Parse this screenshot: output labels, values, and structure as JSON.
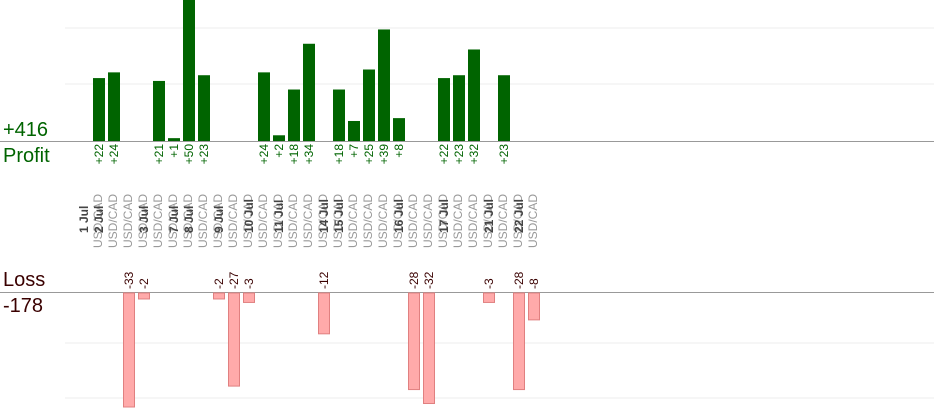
{
  "summary": {
    "profit_value": "+416",
    "profit_label": "Profit",
    "loss_label": "Loss",
    "loss_value": "-178"
  },
  "colors": {
    "profit_bar": "#006400",
    "loss_bar": "#ffaaaa",
    "loss_bar_border": "#e08080",
    "axis_line": "#999999",
    "grid": "#eeeeee",
    "date_text": "#444444",
    "pair_text": "#999999"
  },
  "chart_data": {
    "type": "bar",
    "title": "",
    "profit_axis_max": 50,
    "loss_axis_max": 33,
    "categories": [
      {
        "date": "1 Jul",
        "pair": "USD/CAD",
        "profit": 22,
        "profit_label": "+22"
      },
      {
        "date": "2 Jul",
        "pair": "USD/CAD",
        "profit": 24,
        "profit_label": "+24"
      },
      {
        "date": "",
        "pair": "USD/CAD",
        "loss": -33,
        "loss_label": "-33"
      },
      {
        "date": "",
        "pair": "USD/CAD",
        "loss": -2,
        "loss_label": "-2"
      },
      {
        "date": "3 Jul",
        "pair": "USD/CAD",
        "profit": 21,
        "profit_label": "+21"
      },
      {
        "date": "",
        "pair": "USD/CAD",
        "profit": 1,
        "profit_label": "+1"
      },
      {
        "date": "7 Jul",
        "pair": "USD/CAD",
        "profit": 50,
        "profit_label": "+50"
      },
      {
        "date": "8 Jul",
        "pair": "USD/CAD",
        "profit": 23,
        "profit_label": "+23"
      },
      {
        "date": "",
        "pair": "USD/CAD",
        "loss": -2,
        "loss_label": "-2"
      },
      {
        "date": "9 Jul",
        "pair": "USD/CAD",
        "loss": -27,
        "loss_label": "-27"
      },
      {
        "date": "",
        "pair": "USD/CAD",
        "loss": -3,
        "loss_label": "-3"
      },
      {
        "date": "10 Jul",
        "pair": "USD/CAD",
        "profit": 24,
        "profit_label": "+24"
      },
      {
        "date": "",
        "pair": "USD/CAD",
        "profit": 2,
        "profit_label": "+2"
      },
      {
        "date": "11 Jul",
        "pair": "USD/CAD",
        "profit": 18,
        "profit_label": "+18"
      },
      {
        "date": "",
        "pair": "USD/CAD",
        "profit": 34,
        "profit_label": "+34"
      },
      {
        "date": "",
        "pair": "USD/CAD",
        "loss": -12,
        "loss_label": "-12"
      },
      {
        "date": "14 Jul",
        "pair": "USD/CAD",
        "profit": 18,
        "profit_label": "+18"
      },
      {
        "date": "15 Jul",
        "pair": "USD/CAD",
        "profit": 7,
        "profit_label": "+7"
      },
      {
        "date": "",
        "pair": "USD/CAD",
        "profit": 25,
        "profit_label": "+25"
      },
      {
        "date": "",
        "pair": "USD/CAD",
        "profit": 39,
        "profit_label": "+39"
      },
      {
        "date": "",
        "pair": "USD/CAD",
        "profit": 8,
        "profit_label": "+8"
      },
      {
        "date": "16 Jul",
        "pair": "USD/CAD",
        "loss": -28,
        "loss_label": "-28"
      },
      {
        "date": "",
        "pair": "USD/CAD",
        "loss": -32,
        "loss_label": "-32"
      },
      {
        "date": "",
        "pair": "USD/CAD",
        "profit": 22,
        "profit_label": "+22"
      },
      {
        "date": "17 Jul",
        "pair": "USD/CAD",
        "profit": 23,
        "profit_label": "+23"
      },
      {
        "date": "",
        "pair": "USD/CAD",
        "profit": 32,
        "profit_label": "+32"
      },
      {
        "date": "",
        "pair": "USD/CAD",
        "loss": -3,
        "loss_label": "-3"
      },
      {
        "date": "21 Jul",
        "pair": "USD/CAD",
        "profit": 23,
        "profit_label": "+23"
      },
      {
        "date": "",
        "pair": "USD/CAD",
        "loss": -28,
        "loss_label": "-28"
      },
      {
        "date": "22 Jul",
        "pair": "USD/CAD",
        "loss": -8,
        "loss_label": "-8"
      }
    ]
  }
}
